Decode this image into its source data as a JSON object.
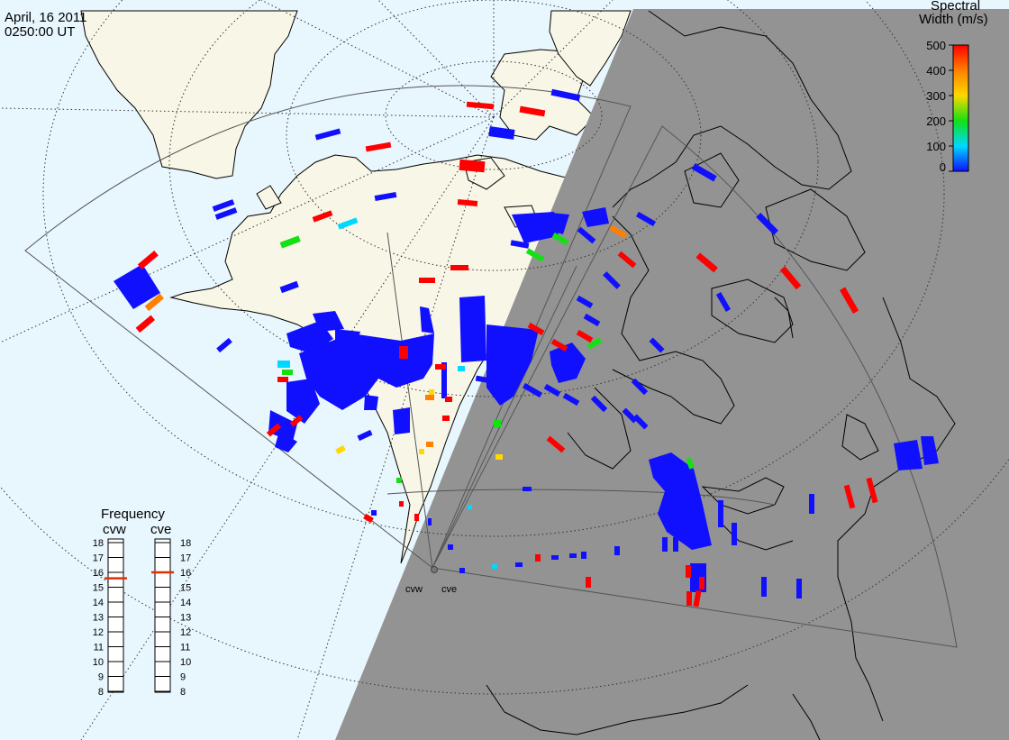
{
  "header": {
    "date": "April, 16 2011",
    "time": "0250:00 UT"
  },
  "colorbar": {
    "title_line1": "Spectral",
    "title_line2": "Width (m/s)",
    "ticks": [
      "500",
      "400",
      "300",
      "200",
      "100",
      "0"
    ],
    "range": [
      0,
      500
    ],
    "colors": [
      "#1010ff",
      "#00d8ff",
      "#14e014",
      "#ffd800",
      "#ff8000",
      "#ff0000"
    ]
  },
  "frequency_panel": {
    "title": "Frequency",
    "radars": [
      {
        "name": "cvw",
        "value_mhz": 15.6
      },
      {
        "name": "cve",
        "value_mhz": 16.0
      }
    ],
    "scale_labels": [
      "18",
      "17",
      "16",
      "15",
      "14",
      "13",
      "12",
      "11",
      "10",
      "9",
      "8"
    ],
    "marker_color": "#e03000"
  },
  "sites": [
    {
      "name": "cvw"
    },
    {
      "name": "cve"
    }
  ],
  "map_colors": {
    "ocean": "#e8f6fd",
    "land": "#f8f6e6",
    "night": "#939393",
    "coast": "#000000",
    "grid": "#333333",
    "fov": "#444444"
  }
}
